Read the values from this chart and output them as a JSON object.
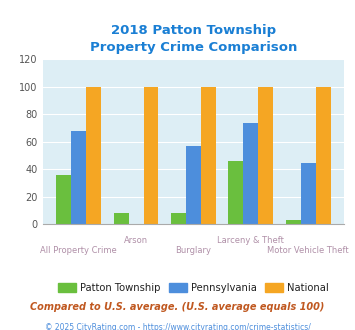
{
  "title_line1": "2018 Patton Township",
  "title_line2": "Property Crime Comparison",
  "categories": [
    "All Property Crime",
    "Arson",
    "Burglary",
    "Larceny & Theft",
    "Motor Vehicle Theft"
  ],
  "patton": [
    36,
    8,
    8,
    46,
    3
  ],
  "pennsylvania": [
    68,
    0,
    57,
    74,
    45
  ],
  "national": [
    100,
    100,
    100,
    100,
    100
  ],
  "color_patton": "#6abf3e",
  "color_pennsylvania": "#4d8edc",
  "color_national": "#f5a623",
  "title_color": "#1a7fd4",
  "xlabel_color": "#b090a8",
  "ylabel_max": 120,
  "ylabel_ticks": [
    0,
    20,
    40,
    60,
    80,
    100,
    120
  ],
  "bg_color": "#ddeef5",
  "legend_label_patton": "Patton Township",
  "legend_label_pa": "Pennsylvania",
  "legend_label_nat": "National",
  "footnote1": "Compared to U.S. average. (U.S. average equals 100)",
  "footnote2": "© 2025 CityRating.com - https://www.cityrating.com/crime-statistics/",
  "footnote1_color": "#c05820",
  "footnote2_color": "#4d8edc"
}
